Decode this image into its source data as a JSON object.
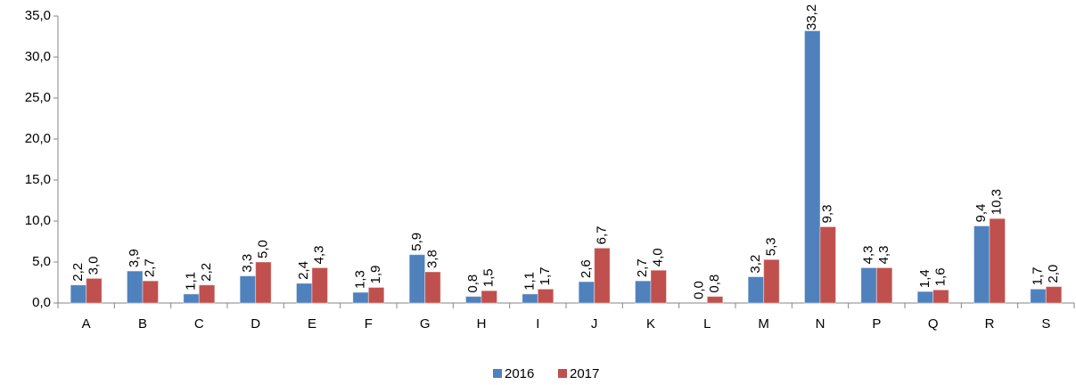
{
  "chart_data": {
    "type": "bar",
    "categories": [
      "A",
      "B",
      "C",
      "D",
      "E",
      "F",
      "G",
      "H",
      "I",
      "J",
      "K",
      "L",
      "M",
      "N",
      "P",
      "Q",
      "R",
      "S"
    ],
    "series": [
      {
        "name": "2016",
        "color": "#4f81bd",
        "values": [
          2.2,
          3.9,
          1.1,
          3.3,
          2.4,
          1.3,
          5.9,
          0.8,
          1.1,
          2.6,
          2.7,
          0.0,
          3.2,
          33.2,
          4.3,
          1.4,
          9.4,
          1.7
        ],
        "value_labels": [
          "2,2",
          "3,9",
          "1,1",
          "3,3",
          "2,4",
          "1,3",
          "5,9",
          "0,8",
          "1,1",
          "2,6",
          "2,7",
          "0,0",
          "3,2",
          "33,2",
          "4,3",
          "1,4",
          "9,4",
          "1,7"
        ]
      },
      {
        "name": "2017",
        "color": "#c0504d",
        "values": [
          3.0,
          2.7,
          2.2,
          5.0,
          4.3,
          1.9,
          3.8,
          1.5,
          1.7,
          6.7,
          4.0,
          0.8,
          5.3,
          9.3,
          4.3,
          1.6,
          10.3,
          2.0
        ],
        "value_labels": [
          "3,0",
          "2,7",
          "2,2",
          "5,0",
          "4,3",
          "1,9",
          "3,8",
          "1,5",
          "1,7",
          "6,7",
          "4,0",
          "0,8",
          "5,3",
          "9,3",
          "4,3",
          "1,6",
          "10,3",
          "2,0"
        ]
      }
    ],
    "ylim": [
      0,
      35
    ],
    "yticks": [
      {
        "value": 0,
        "label": "0,0"
      },
      {
        "value": 5,
        "label": "5,0"
      },
      {
        "value": 10,
        "label": "10,0"
      },
      {
        "value": 15,
        "label": "15,0"
      },
      {
        "value": 20,
        "label": "20,0"
      },
      {
        "value": 25,
        "label": "25,0"
      },
      {
        "value": 30,
        "label": "30,0"
      },
      {
        "value": 35,
        "label": "35,0"
      }
    ],
    "legend": "bottom"
  }
}
